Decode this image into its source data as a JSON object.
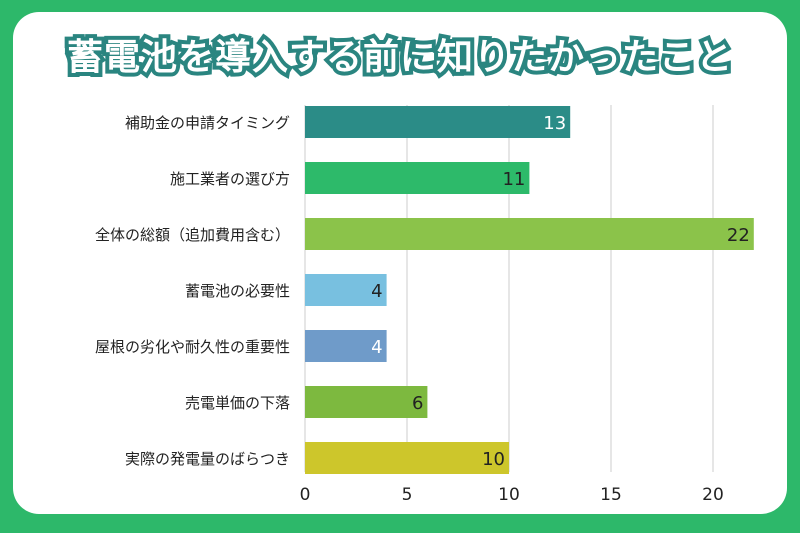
{
  "chart_data": {
    "type": "bar",
    "orientation": "horizontal",
    "title": "蓄電池を導入する前に知りたかったこと",
    "categories": [
      "補助金の申請タイミング",
      "施工業者の選び方",
      "全体の総額（追加費用含む）",
      "蓄電池の必要性",
      "屋根の劣化や耐久性の重要性",
      "売電単価の下落",
      "実際の発電量のばらつき"
    ],
    "values": [
      13,
      11,
      22,
      4,
      4,
      6,
      10
    ],
    "colors": [
      "#2b8c87",
      "#2dba6a",
      "#8bc34a",
      "#78c0e0",
      "#6f9bc9",
      "#7db93f",
      "#cdc62b"
    ],
    "label_colors": [
      "#ffffff",
      "#222222",
      "#222222",
      "#222222",
      "#ffffff",
      "#222222",
      "#222222"
    ],
    "xlim": [
      0,
      22
    ],
    "xticks": [
      0,
      5,
      10,
      15,
      20
    ],
    "grid": true,
    "xlabel": "",
    "ylabel": ""
  }
}
